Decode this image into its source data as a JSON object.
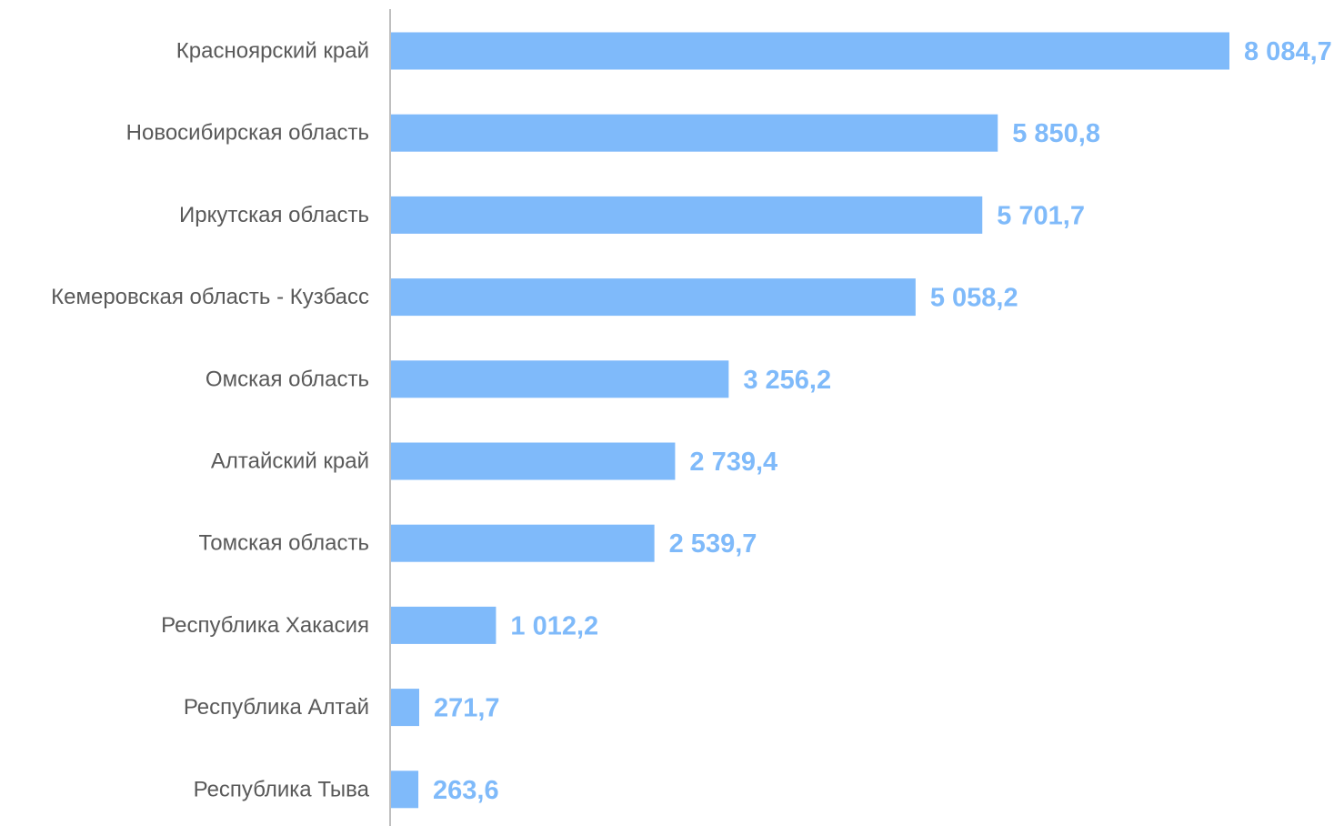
{
  "chart_data": {
    "type": "bar",
    "orientation": "horizontal",
    "categories": [
      "Красноярский край",
      "Новосибирская область",
      "Иркутская область",
      "Кемеровская область - Кузбасс",
      "Омская область",
      "Алтайский край",
      "Томская область",
      "Республика Хакасия",
      "Республика Алтай",
      "Республика Тыва"
    ],
    "values": [
      8084.7,
      5850.8,
      5701.7,
      5058.2,
      3256.2,
      2739.4,
      2539.7,
      1012.2,
      271.7,
      263.6
    ],
    "value_labels": [
      "8 084,7",
      "5 850,8",
      "5 701,7",
      "5 058,2",
      "3 256,2",
      "2 739,4",
      "2 539,7",
      "1 012,2",
      "271,7",
      "263,6"
    ],
    "xlim": [
      0,
      8084.7
    ],
    "grid": false,
    "legend": "none",
    "colors": {
      "bar": "#7FBAFA",
      "value_label": "#7FBAFA",
      "category_label": "#595959",
      "axis": "#BFBFBF"
    }
  }
}
